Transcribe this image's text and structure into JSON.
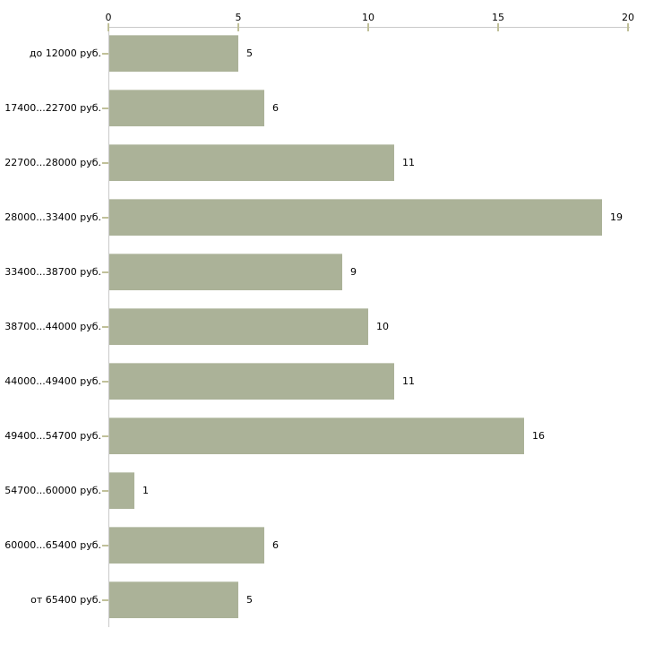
{
  "chart_data": {
    "type": "bar",
    "orientation": "horizontal",
    "title": "",
    "xlabel": "",
    "ylabel": "",
    "categories": [
      "до 12000 руб.",
      "17400...22700 руб.",
      "22700...28000 руб.",
      "28000...33400 руб.",
      "33400...38700 руб.",
      "38700...44000 руб.",
      "44000...49400 руб.",
      "49400...54700 руб.",
      "54700...60000 руб.",
      "60000...65400 руб.",
      "от 65400 руб."
    ],
    "values": [
      5,
      6,
      11,
      19,
      9,
      10,
      11,
      16,
      1,
      6,
      5
    ],
    "xlim": [
      0,
      20
    ],
    "xticks": [
      0,
      5,
      10,
      15,
      20
    ],
    "axis_position": "top",
    "grid": false,
    "legend": "none",
    "colors": {
      "bar": "#abb298",
      "axis_line": "#c9c9c9",
      "tick_mark": "#c0c099",
      "text": "#000000",
      "background": "#ffffff"
    }
  }
}
